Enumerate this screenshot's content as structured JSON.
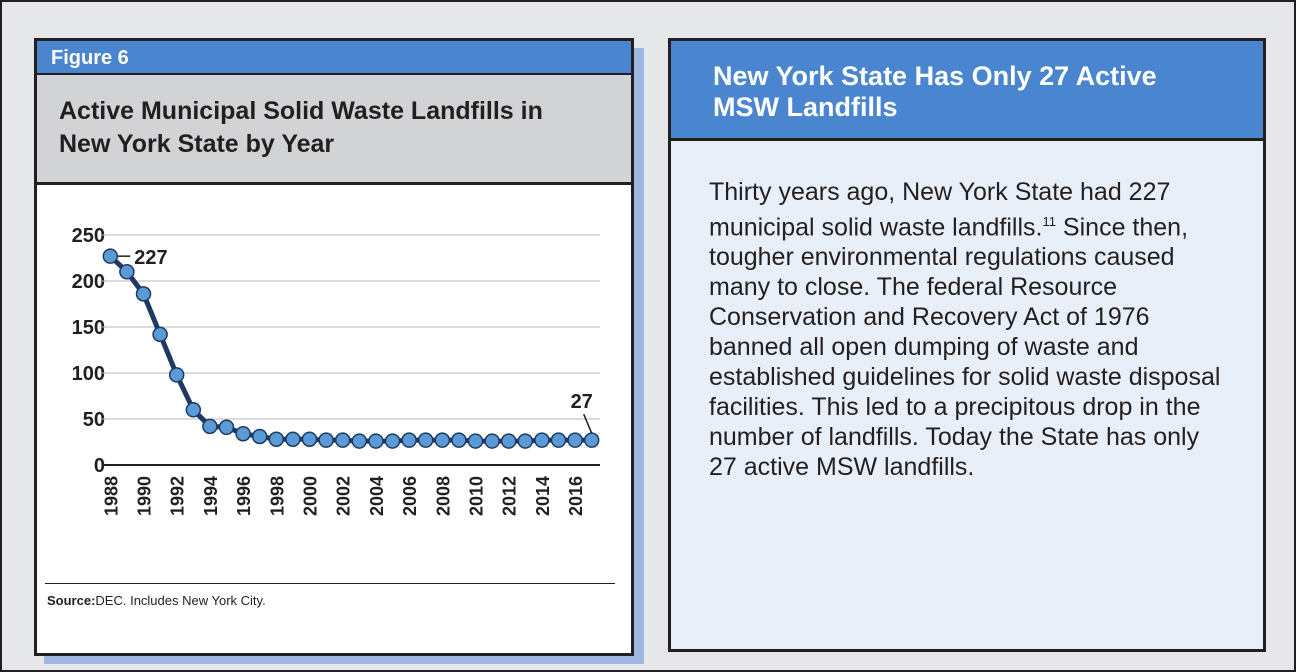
{
  "figure_label": "Figure 6",
  "chart_data": {
    "type": "line",
    "title": "Active Municipal Solid Waste Landfills in New York State by Year",
    "x": [
      1988,
      1989,
      1990,
      1991,
      1992,
      1993,
      1994,
      1995,
      1996,
      1997,
      1998,
      1999,
      2000,
      2001,
      2002,
      2003,
      2004,
      2005,
      2006,
      2007,
      2008,
      2009,
      2010,
      2011,
      2012,
      2013,
      2014,
      2015,
      2016,
      2017
    ],
    "values": [
      227,
      210,
      186,
      142,
      98,
      60,
      42,
      41,
      34,
      31,
      28,
      28,
      28,
      27,
      27,
      26,
      26,
      26,
      27,
      27,
      27,
      27,
      26,
      26,
      26,
      26,
      27,
      27,
      27,
      27
    ],
    "value_labels": [
      "227",
      null,
      null,
      null,
      null,
      null,
      null,
      null,
      null,
      null,
      null,
      null,
      null,
      null,
      null,
      null,
      null,
      null,
      null,
      null,
      null,
      null,
      null,
      null,
      null,
      null,
      null,
      null,
      null,
      "27"
    ],
    "color": "#1f3864",
    "marker_color": "#5b9bd5",
    "xlim": [
      1987.5,
      2017.5
    ],
    "xticks": [
      1988,
      1990,
      1992,
      1994,
      1996,
      1998,
      2000,
      2002,
      2004,
      2006,
      2008,
      2010,
      2012,
      2014,
      2016
    ],
    "ylim": [
      0,
      250
    ],
    "yticks": [
      0,
      50,
      100,
      150,
      200,
      250
    ],
    "grid": true
  },
  "source": {
    "label": "Source:",
    "text": "DEC. Includes New York City."
  },
  "sidebar": {
    "title": "New York State Has Only 27 Active MSW Landfills",
    "body_start": "Thirty years ago, New York State had 227 municipal solid waste landfills.",
    "footnote": "11",
    "body_end": " Since then, tougher environmental regulations caused many to close. The federal Resource Conservation and Recovery Act of 1976 banned all open dumping of waste and established guidelines for solid waste disposal facilities. This led to a precipitous drop in the number of landfills. Today the State has only 27 active MSW landfills."
  }
}
